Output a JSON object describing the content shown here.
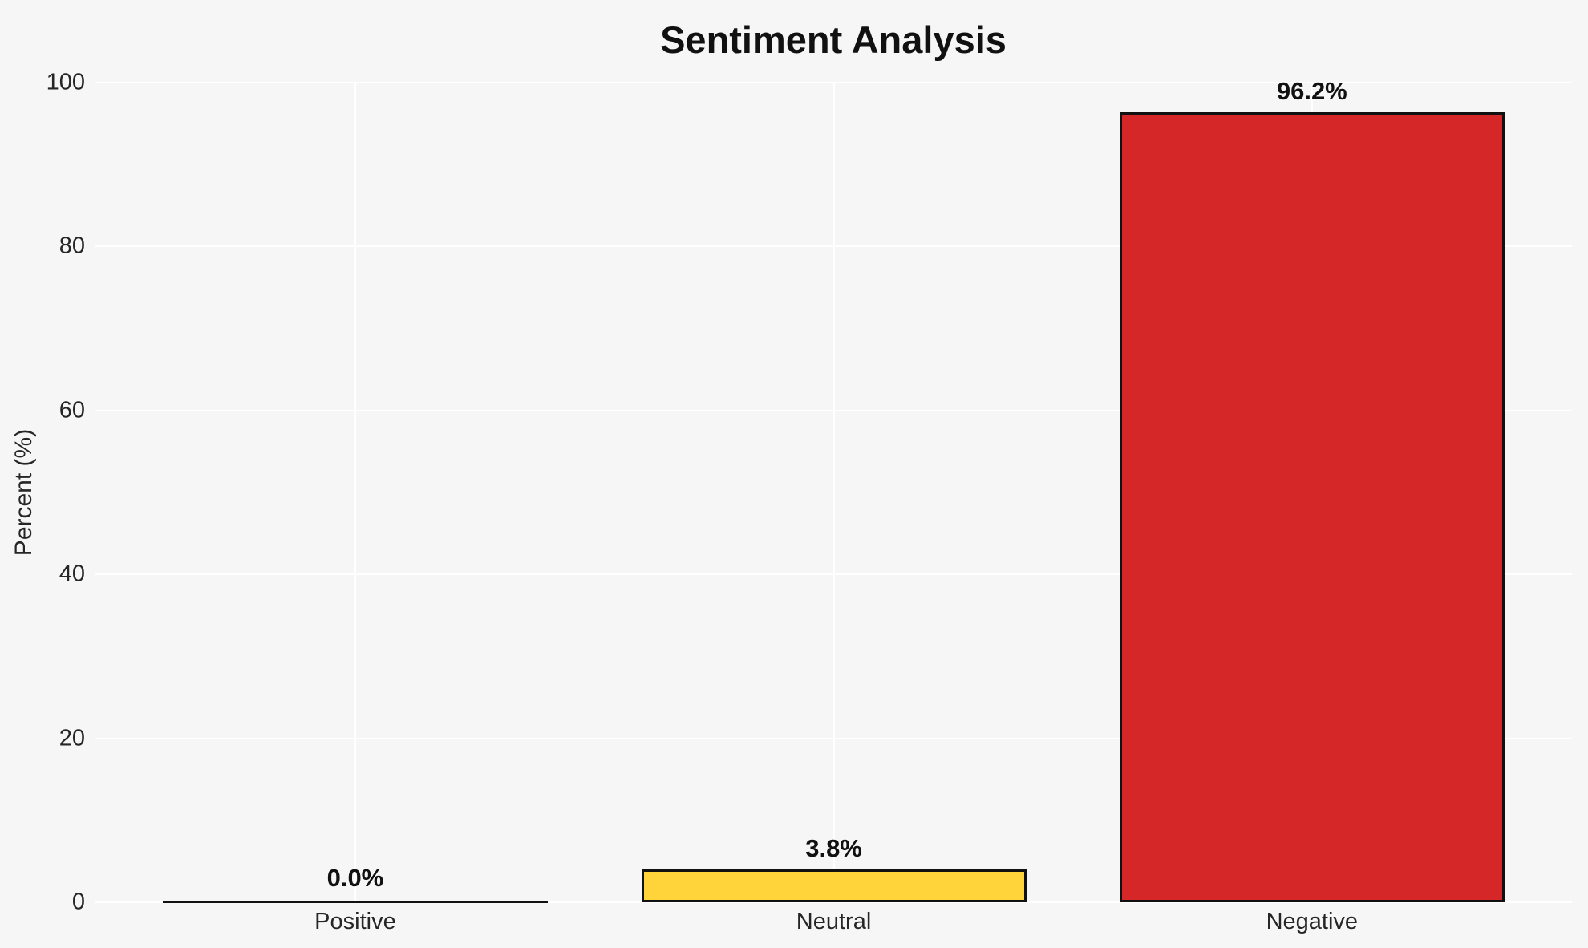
{
  "figure": {
    "background_color": "#f6f6f7",
    "gridline_color": "#ffffff",
    "text_color": "#262626",
    "title_color": "#111111"
  },
  "chart_data": {
    "type": "bar",
    "title": "Sentiment Analysis",
    "xlabel": "",
    "ylabel": "Percent (%)",
    "categories": [
      "Positive",
      "Neutral",
      "Negative"
    ],
    "values": [
      0.0,
      3.8,
      96.2
    ],
    "bar_value_labels": [
      "0.0%",
      "3.8%",
      "96.2%"
    ],
    "bar_fill_colors": [
      null,
      "#FFD43B",
      "#D62728"
    ],
    "bar_edge_color": "#111111",
    "ylim": [
      0,
      100
    ],
    "yticks": [
      0,
      20,
      40,
      60,
      80,
      100
    ],
    "ytick_labels": [
      "0",
      "20",
      "40",
      "60",
      "80",
      "100"
    ],
    "grid": true,
    "legend": false
  }
}
